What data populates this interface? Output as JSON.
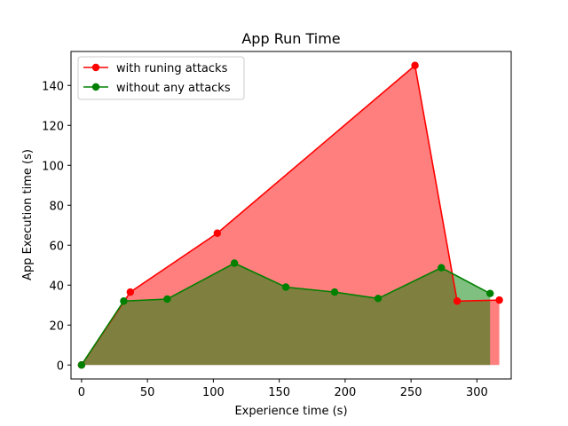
{
  "chart_data": {
    "type": "area",
    "title": "App Run Time",
    "xlabel": "Experience time (s)",
    "ylabel": "App Execution time  (s)",
    "xlim": [
      -8,
      326
    ],
    "ylim": [
      -7,
      157
    ],
    "xticks": [
      0,
      50,
      100,
      150,
      200,
      250,
      300
    ],
    "yticks": [
      0,
      20,
      40,
      60,
      80,
      100,
      120,
      140
    ],
    "grid": false,
    "legend_position": "top-left",
    "series": [
      {
        "name": "with runing attacks",
        "color": "#ff0000",
        "fill_color": "#ff0000",
        "fill_opacity": 0.5,
        "x": [
          0,
          37,
          103,
          253,
          285,
          317
        ],
        "y": [
          0,
          36.5,
          66,
          150,
          32,
          32.5
        ]
      },
      {
        "name": "without any attacks",
        "color": "#008000",
        "fill_color": "#008000",
        "fill_opacity": 0.5,
        "x": [
          0,
          32,
          65,
          116,
          155,
          192,
          225,
          273,
          310
        ],
        "y": [
          0,
          32,
          33,
          51,
          39,
          36.5,
          33.3,
          48.7,
          35.8
        ]
      }
    ]
  }
}
